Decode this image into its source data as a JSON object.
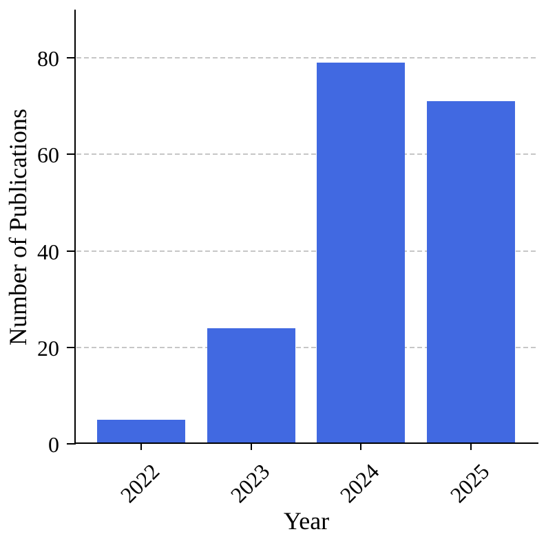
{
  "figure": {
    "background": "#ffffff"
  },
  "chart_data": {
    "type": "bar",
    "title": "",
    "xlabel": "Year",
    "ylabel": "Number of Publications",
    "categories": [
      "2022",
      "2023",
      "2024",
      "2025"
    ],
    "values": [
      5,
      24,
      79,
      71
    ],
    "yticks": [
      0,
      20,
      40,
      60,
      80
    ],
    "ylim": [
      0,
      90
    ],
    "xtick_rotation_deg": 45,
    "bar_color": "#4169e1",
    "grid": {
      "axis": "y",
      "style": "dashed",
      "color": "#c6c6c6"
    },
    "spine_color": "#000000",
    "text_color": "#000000",
    "legend": null
  }
}
